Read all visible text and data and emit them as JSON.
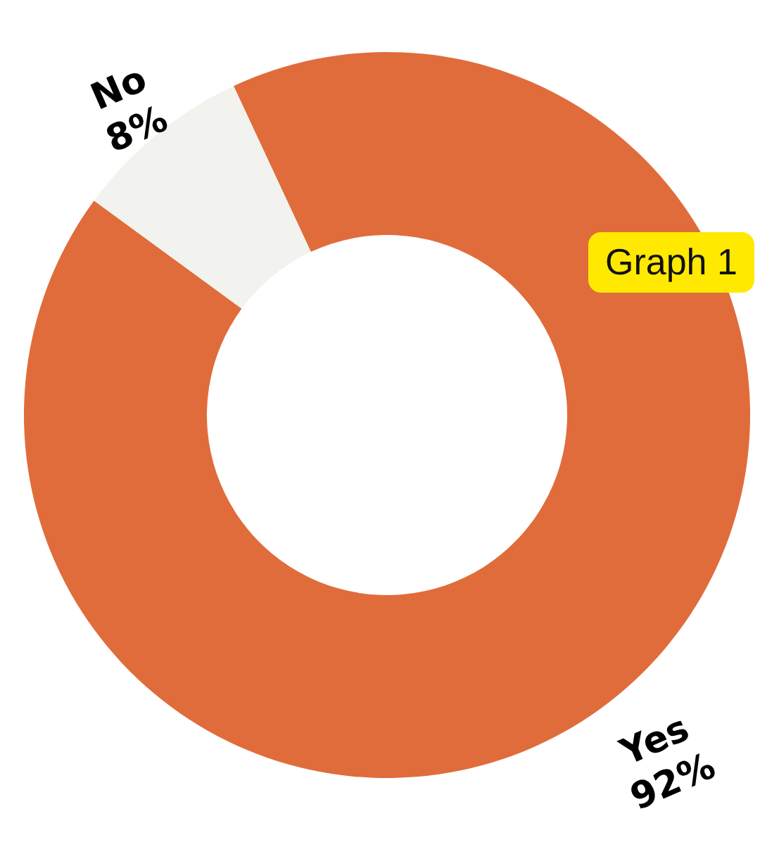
{
  "chart_data": {
    "type": "donut",
    "categories": [
      "Yes",
      "No"
    ],
    "values": [
      92,
      8
    ],
    "colors": [
      "#e06c3b",
      "#f2f2ee"
    ],
    "value_labels": [
      "92%",
      "8%"
    ],
    "annotations": [
      "Graph 1"
    ]
  }
}
